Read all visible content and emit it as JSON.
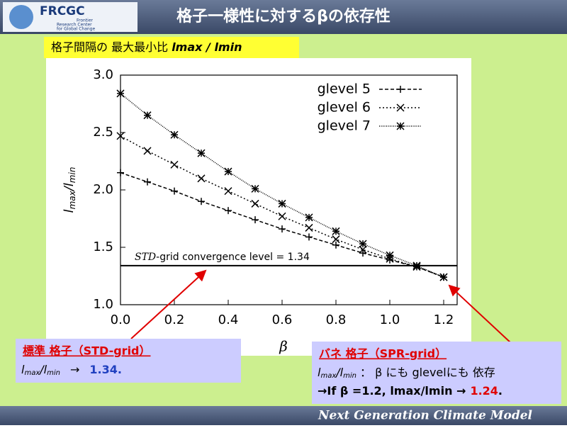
{
  "header": {
    "logo": "FRCGC",
    "logo_sub": [
      "Frontier",
      "Research Center",
      "for Global Change"
    ],
    "title": "格子一様性に対するβの依存性"
  },
  "subtitle": {
    "text": "格子間隔の 最大最小比 ",
    "italic": "lmax / lmin"
  },
  "chart_data": {
    "type": "line",
    "xlabel": "β",
    "ylabel": {
      "base1": "l",
      "sub1": "max",
      "base2": "/l",
      "sub2": "min"
    },
    "x": [
      0,
      0.1,
      0.2,
      0.3,
      0.4,
      0.5,
      0.6,
      0.7,
      0.8,
      0.9,
      1.0,
      1.1,
      1.2
    ],
    "series": [
      {
        "name": "glevel 5",
        "color": "#000000",
        "dash": "5,3",
        "marker": "plus",
        "values": [
          2.15,
          2.07,
          1.99,
          1.9,
          1.82,
          1.74,
          1.66,
          1.59,
          1.52,
          1.45,
          1.39,
          1.33,
          1.24
        ]
      },
      {
        "name": "glevel 6",
        "color": "#000000",
        "dash": "2,3",
        "marker": "cross",
        "values": [
          2.47,
          2.34,
          2.22,
          2.1,
          1.99,
          1.88,
          1.77,
          1.67,
          1.57,
          1.48,
          1.4,
          1.33,
          1.24
        ]
      },
      {
        "name": "glevel 7",
        "color": "#000000",
        "dash": "1,1.5",
        "marker": "star",
        "values": [
          2.84,
          2.65,
          2.48,
          2.32,
          2.16,
          2.01,
          1.88,
          1.76,
          1.64,
          1.53,
          1.43,
          1.34,
          1.24
        ]
      }
    ],
    "hline": {
      "value": 1.34,
      "label_italic": "STD",
      "label": "-grid convergence level = 1.34"
    },
    "xlim": [
      0,
      1.25
    ],
    "ylim": [
      1.0,
      3.0
    ],
    "xticks": [
      {
        "value": 0,
        "label": "0.0"
      },
      0.2,
      0.4,
      0.6,
      0.8,
      {
        "value": 1,
        "label": "1.0"
      },
      1.2
    ],
    "yticks": [
      {
        "value": 1,
        "label": "1.0"
      },
      1.5,
      {
        "value": 2,
        "label": "2.0"
      },
      2.5,
      {
        "value": 3,
        "label": "3.0"
      }
    ],
    "legend": "upper right"
  },
  "annotations": {
    "left": {
      "title": "標準 格子（STD-grid）",
      "l1": "l",
      "s1": "max",
      "l2": "/l",
      "s2": "min",
      "arrow": "→",
      "value": "1.34."
    },
    "right": {
      "title": "バネ 格子（SPR-grid）",
      "l1": "l",
      "s1": "max",
      "l2": "/l",
      "s2": "min",
      "text2": " ： β にも glevelにも 依存",
      "arrow": "→",
      "text3": "If  β =1.2, lmax/lmin ",
      "arrow2": "→",
      "value": "1.24",
      "end": "."
    }
  },
  "footer": "Next Generation Climate Model"
}
